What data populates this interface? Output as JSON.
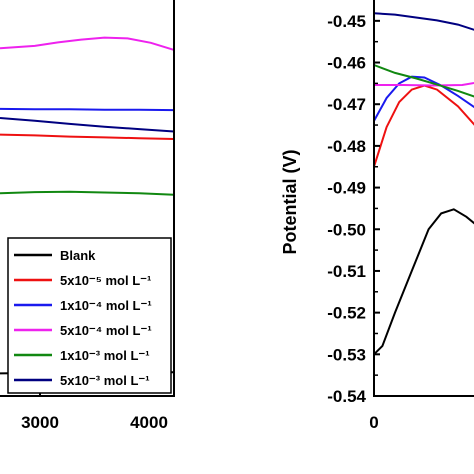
{
  "chart_data": [
    {
      "type": "line",
      "xlabel": "",
      "ylabel": "",
      "x_tick_labels": [
        "3000",
        "4000"
      ],
      "xlim": [
        2500,
        4000
      ],
      "ylim": [
        0,
        1
      ],
      "legend": {
        "placement": "bottom-right",
        "entries": [
          {
            "label": "Blank",
            "color": "#000000"
          },
          {
            "label": "5x10⁻⁵ mol L⁻¹",
            "color": "#ee1111"
          },
          {
            "label": "1x10⁻⁴ mol L⁻¹",
            "color": "#1a1aee"
          },
          {
            "label": "5x10⁻⁴ mol L⁻¹",
            "color": "#ee22ee"
          },
          {
            "label": "1x10⁻³ mol L⁻¹",
            "color": "#118811"
          },
          {
            "label": "5x10⁻³ mol L⁻¹",
            "color": "#000080"
          }
        ]
      },
      "series": [
        {
          "name": "Blank",
          "color": "#000000",
          "x": [
            2500,
            2800,
            3100,
            3400,
            3700,
            4000
          ],
          "y": [
            0.057,
            0.058,
            0.059,
            0.059,
            0.06,
            0.06
          ]
        },
        {
          "name": "5x10⁻⁵ mol L⁻¹",
          "color": "#ee1111",
          "x": [
            2500,
            2800,
            3100,
            3400,
            3700,
            4000
          ],
          "y": [
            0.66,
            0.658,
            0.655,
            0.653,
            0.651,
            0.649
          ]
        },
        {
          "name": "1x10⁻⁴ mol L⁻¹",
          "color": "#1a1aee",
          "x": [
            2500,
            2800,
            3100,
            3400,
            3700,
            4000
          ],
          "y": [
            0.725,
            0.724,
            0.724,
            0.723,
            0.723,
            0.722
          ]
        },
        {
          "name": "5x10⁻⁴ mol L⁻¹",
          "color": "#ee22ee",
          "x": [
            2500,
            2800,
            3000,
            3200,
            3400,
            3600,
            3800,
            4000
          ],
          "y": [
            0.878,
            0.884,
            0.893,
            0.9,
            0.905,
            0.903,
            0.892,
            0.874
          ]
        },
        {
          "name": "1x10⁻³ mol L⁻¹",
          "color": "#118811",
          "x": [
            2500,
            2800,
            3100,
            3400,
            3700,
            4000
          ],
          "y": [
            0.512,
            0.515,
            0.516,
            0.514,
            0.512,
            0.508
          ]
        },
        {
          "name": "5x10⁻³ mol L⁻¹",
          "color": "#000080",
          "x": [
            2500,
            2800,
            3100,
            3400,
            3700,
            4000
          ],
          "y": [
            0.702,
            0.695,
            0.687,
            0.68,
            0.674,
            0.668
          ]
        }
      ]
    },
    {
      "type": "line",
      "xlabel": "",
      "ylabel": "Potential (V)",
      "x_tick_labels": [
        "0"
      ],
      "y_tick_labels": [
        "-0.45",
        "-0.46",
        "-0.47",
        "-0.48",
        "-0.49",
        "-0.50",
        "-0.51",
        "-0.52",
        "-0.53",
        "-0.54"
      ],
      "xlim": [
        0,
        100
      ],
      "ylim": [
        -0.54,
        -0.445
      ],
      "series": [
        {
          "color": "#000000",
          "x": [
            0,
            2,
            5,
            9,
            13,
            16,
            19,
            22,
            25,
            28
          ],
          "y": [
            -0.53,
            -0.528,
            -0.52,
            -0.51,
            -0.5,
            -0.4962,
            -0.4952,
            -0.497,
            -0.4995,
            -0.5008
          ]
        },
        {
          "color": "#ee1111",
          "x": [
            0,
            3,
            6,
            9,
            12,
            15,
            20,
            24,
            28
          ],
          "y": [
            -0.485,
            -0.4755,
            -0.4695,
            -0.4665,
            -0.4655,
            -0.4665,
            -0.4705,
            -0.475,
            -0.479
          ]
        },
        {
          "color": "#1a1aee",
          "x": [
            0,
            3,
            6,
            9,
            12,
            16,
            20,
            24,
            28
          ],
          "y": [
            -0.474,
            -0.4685,
            -0.465,
            -0.4634,
            -0.4636,
            -0.4655,
            -0.468,
            -0.4708,
            -0.473
          ]
        },
        {
          "color": "#ee22ee",
          "x": [
            0,
            7,
            14,
            21,
            28
          ],
          "y": [
            -0.4654,
            -0.4654,
            -0.4655,
            -0.4654,
            -0.4642
          ]
        },
        {
          "color": "#118811",
          "x": [
            0,
            5,
            10,
            15,
            20,
            24,
            28
          ],
          "y": [
            -0.4606,
            -0.4625,
            -0.4638,
            -0.4653,
            -0.4668,
            -0.4682,
            -0.4695
          ]
        },
        {
          "color": "#000080",
          "x": [
            0,
            5,
            10,
            15,
            20,
            24,
            28
          ],
          "y": [
            -0.4482,
            -0.4485,
            -0.4492,
            -0.4499,
            -0.4509,
            -0.4522,
            -0.4534
          ]
        }
      ]
    }
  ]
}
